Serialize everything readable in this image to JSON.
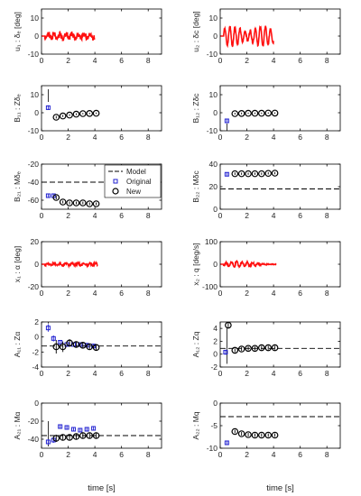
{
  "chart_data": {
    "type": "multi-panel",
    "xlabel": "time [s]",
    "xlim": [
      0,
      9
    ],
    "xticks": [
      0,
      2,
      4,
      6,
      8
    ],
    "legend": {
      "placement": "top-right",
      "entries": [
        {
          "label": "Model",
          "style": "dashed-line",
          "color": "#000000"
        },
        {
          "label": "Original",
          "style": "square",
          "color": "#1f1fd0"
        },
        {
          "label": "New",
          "style": "circle",
          "color": "#000000"
        }
      ]
    },
    "colors": {
      "signal": "#ff1010",
      "original": "#1f1fd0",
      "new": "#000000",
      "model": "#000000"
    },
    "panels": [
      {
        "id": "u1",
        "ylabel": "u₁ : δₑ [deg]",
        "ylim": [
          -10,
          15
        ],
        "yticks": [
          -10,
          0,
          10
        ],
        "kind": "signal",
        "signal": {
          "start": 0.25,
          "end": 4.0,
          "amp": 2.5,
          "envelope": "random"
        }
      },
      {
        "id": "u2",
        "ylabel": "u₂ : δc [deg]",
        "ylim": [
          -10,
          15
        ],
        "yticks": [
          -10,
          0,
          10
        ],
        "kind": "signal",
        "signal": {
          "start": 0.25,
          "end": 4.0,
          "amp": 5.5,
          "envelope": "pulses"
        }
      },
      {
        "id": "B11",
        "ylabel": "B₁₁ : Zδₑ",
        "ylim": [
          -10,
          15
        ],
        "yticks": [
          -10,
          0,
          10
        ],
        "kind": "estimates",
        "model": null,
        "original": {
          "x": [
            0.5
          ],
          "y": [
            2.8
          ],
          "err": [
            1.3
          ]
        },
        "new": {
          "x": [
            1.0,
            1.5,
            2.0,
            2.5,
            3.0,
            3.5,
            4.0
          ],
          "y": [
            -2.5,
            -1.8,
            -1.3,
            -0.8,
            -0.5,
            -0.4,
            -0.3
          ],
          "err": [
            0.7,
            0.6,
            0.5,
            0.5,
            0.4,
            0.4,
            0.4
          ]
        },
        "spike": {
          "x": 0.5,
          "y1": 6,
          "y2": 13
        }
      },
      {
        "id": "B12",
        "ylabel": "B₁₂ : Zδc",
        "ylim": [
          -10,
          15
        ],
        "yticks": [
          -10,
          0,
          10
        ],
        "kind": "estimates",
        "model": null,
        "original": {
          "x": [
            0.5
          ],
          "y": [
            -4.5
          ],
          "err": [
            0.8
          ]
        },
        "new": {
          "x": [
            1.0,
            1.5,
            2.0,
            2.5,
            3.0,
            3.5,
            4.0
          ],
          "y": [
            -0.5,
            -0.4,
            -0.3,
            -0.3,
            -0.3,
            -0.2,
            -0.2
          ],
          "err": [
            0.5,
            0.5,
            0.4,
            0.4,
            0.4,
            0.4,
            0.4
          ]
        },
        "spike": {
          "x": 0.5,
          "y1": -6,
          "y2": -10
        }
      },
      {
        "id": "B21",
        "ylabel": "B₂₁ : Mδₑ",
        "ylim": [
          -70,
          -20
        ],
        "yticks": [
          -60,
          -40,
          -20
        ],
        "kind": "estimates",
        "model": -40,
        "original": {
          "x": [
            0.5,
            1.0
          ],
          "y": [
            -55,
            -55
          ],
          "err": [
            2,
            2
          ]
        },
        "new": {
          "x": [
            1.0,
            1.5,
            2.0,
            2.5,
            3.0,
            3.5,
            4.0
          ],
          "y": [
            -57,
            -62,
            -63,
            -63,
            -63,
            -64,
            -64
          ],
          "err": [
            2,
            1.5,
            1.5,
            1.5,
            1.5,
            1.5,
            1.5
          ]
        },
        "spike": null
      },
      {
        "id": "B22",
        "ylabel": "B₂₂ : Mδc",
        "ylim": [
          0,
          40
        ],
        "yticks": [
          0,
          20,
          40
        ],
        "kind": "estimates",
        "model": 18,
        "original": {
          "x": [
            0.5
          ],
          "y": [
            31
          ],
          "err": [
            1.5
          ]
        },
        "new": {
          "x": [
            1.0,
            1.5,
            2.0,
            2.5,
            3.0,
            3.5,
            4.0
          ],
          "y": [
            31.5,
            31.5,
            31.5,
            31.5,
            31.5,
            31.8,
            32
          ],
          "err": [
            1.2,
            1,
            1,
            1,
            1,
            1,
            1
          ]
        },
        "spike": null
      },
      {
        "id": "x1",
        "ylabel": "x₁ : α [deg]",
        "ylim": [
          -20,
          20
        ],
        "yticks": [
          -20,
          0,
          20
        ],
        "kind": "signal",
        "signal": {
          "start": 0.25,
          "end": 4.2,
          "amp": 1.6,
          "envelope": "random"
        }
      },
      {
        "id": "x2",
        "ylabel": "x₂ : q [deg/s]",
        "ylim": [
          -100,
          100
        ],
        "yticks": [
          -100,
          0,
          100
        ],
        "kind": "signal",
        "signal": {
          "start": 0.25,
          "end": 4.2,
          "amp": 12,
          "envelope": "burst"
        }
      },
      {
        "id": "A11",
        "ylabel": "A₁₁ : Zα",
        "ylim": [
          -4,
          2
        ],
        "yticks": [
          -4,
          -2,
          0,
          2
        ],
        "kind": "estimates",
        "model": -1.2,
        "original": {
          "x": [
            0.5,
            1.0,
            1.5,
            2.0,
            2.5,
            3.0,
            3.5,
            4.0
          ],
          "y": [
            1.2,
            -0.2,
            -0.7,
            -1.0,
            -1.0,
            -1.0,
            -1.1,
            -1.2
          ],
          "err": [
            0.5,
            0.4,
            0.3,
            0.3,
            0.3,
            0.3,
            0.3,
            0.3
          ]
        },
        "new": {
          "x": [
            1.0,
            1.5,
            2.0,
            2.5,
            3.0,
            3.5,
            4.0
          ],
          "y": [
            -1.3,
            -1.3,
            -0.8,
            -1.0,
            -1.1,
            -1.3,
            -1.4
          ],
          "err": [
            0.9,
            0.7,
            0.5,
            0.4,
            0.4,
            0.4,
            0.4
          ]
        },
        "spike": {
          "x": 0.5,
          "y1": 1.8,
          "y2": 2.5
        }
      },
      {
        "id": "A12",
        "ylabel": "A₁₂ : Zq",
        "ylim": [
          -2,
          5
        ],
        "yticks": [
          -2,
          0,
          2,
          4
        ],
        "kind": "estimates",
        "model": 0.9,
        "original": {
          "x": [
            0.5
          ],
          "y": [
            0.3
          ],
          "err": [
            0.4
          ]
        },
        "new": {
          "x": [
            0.5,
            1.0,
            1.5,
            2.0,
            2.5,
            3.0,
            3.5,
            4.0
          ],
          "y": [
            4.5,
            0.6,
            0.8,
            0.9,
            0.9,
            1.0,
            1.0,
            1.0
          ],
          "err": [
            0.5,
            0.3,
            0.3,
            0.3,
            0.3,
            0.3,
            0.3,
            0.3
          ]
        },
        "spike": {
          "x": 0.5,
          "y1": 4.0,
          "y2": -1.5
        }
      },
      {
        "id": "A21",
        "ylabel": "A₂₁ : Mα",
        "ylim": [
          -50,
          0
        ],
        "yticks": [
          -40,
          -20,
          0
        ],
        "kind": "estimates",
        "model": -36,
        "original": {
          "x": [
            0.5,
            1.0,
            1.5,
            2.0,
            2.5,
            3.0,
            3.5,
            4.0
          ],
          "y": [
            -43,
            -41,
            -26,
            -27,
            -29,
            -30,
            -29,
            -28
          ],
          "err": [
            3,
            3,
            2.5,
            2.5,
            2.5,
            2.5,
            2.5,
            2.5
          ]
        },
        "new": {
          "x": [
            1.0,
            1.5,
            2.0,
            2.5,
            3.0,
            3.5,
            4.0
          ],
          "y": [
            -39,
            -38,
            -38,
            -37,
            -36,
            -36,
            -36
          ],
          "err": [
            4,
            3,
            3,
            3,
            3,
            3,
            3
          ]
        },
        "spike": {
          "x": 0.5,
          "y1": -20,
          "y2": -48
        }
      },
      {
        "id": "A22",
        "ylabel": "A₂₂ : Mq",
        "ylim": [
          -10,
          0
        ],
        "yticks": [
          -10,
          -5,
          0
        ],
        "kind": "estimates",
        "model": -3,
        "original": {
          "x": [
            0.5
          ],
          "y": [
            -8.8
          ],
          "err": [
            0.4
          ]
        },
        "new": {
          "x": [
            1.0,
            1.5,
            2.0,
            2.5,
            3.0,
            3.5,
            4.0
          ],
          "y": [
            -6.3,
            -6.8,
            -7.0,
            -7.1,
            -7.1,
            -7.1,
            -7.1
          ],
          "err": [
            0.4,
            0.4,
            0.4,
            0.4,
            0.4,
            0.4,
            0.4
          ]
        },
        "spike": null
      }
    ]
  }
}
